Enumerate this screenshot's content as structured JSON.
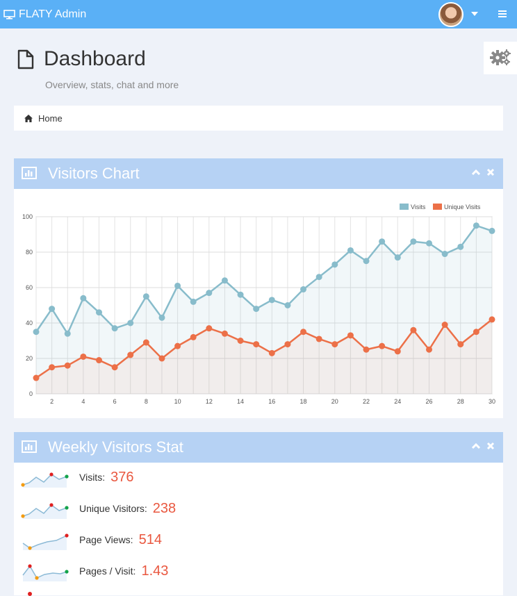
{
  "navbar": {
    "brand": "FLATY Admin"
  },
  "page": {
    "title": "Dashboard",
    "subtitle": "Overview, stats, chat and more"
  },
  "breadcrumb": {
    "home": "Home"
  },
  "visitors_chart": {
    "title": "Visitors Chart"
  },
  "weekly_stats": {
    "title": "Weekly Visitors Stat",
    "items": [
      {
        "label": "Visits:",
        "value": "376"
      },
      {
        "label": "Unique Visitors:",
        "value": "238"
      },
      {
        "label": "Page Views:",
        "value": "514"
      },
      {
        "label": "Pages / Visit:",
        "value": "1.43"
      }
    ]
  },
  "colors": {
    "navbar": "#5ab0f6",
    "box_header": "#b6d2f4",
    "visits": "#88bccb",
    "unique": "#ec7048",
    "stat_value": "#e9573f"
  },
  "chart_data": {
    "type": "line",
    "x": [
      1,
      2,
      3,
      4,
      5,
      6,
      7,
      8,
      9,
      10,
      11,
      12,
      13,
      14,
      15,
      16,
      17,
      18,
      19,
      20,
      21,
      22,
      23,
      24,
      25,
      26,
      27,
      28,
      29,
      30
    ],
    "series": [
      {
        "name": "Visits",
        "values": [
          35,
          48,
          34,
          54,
          46,
          37,
          40,
          55,
          43,
          61,
          52,
          57,
          64,
          56,
          48,
          53,
          50,
          59,
          66,
          73,
          81,
          75,
          86,
          77,
          86,
          85,
          79,
          83,
          95,
          92
        ]
      },
      {
        "name": "Unique Visits",
        "values": [
          9,
          15,
          16,
          21,
          19,
          15,
          22,
          29,
          20,
          27,
          32,
          37,
          34,
          30,
          28,
          23,
          28,
          35,
          31,
          28,
          33,
          25,
          27,
          24,
          36,
          25,
          39,
          28,
          35,
          42
        ]
      }
    ],
    "xlim": [
      1,
      30
    ],
    "ylim": [
      0,
      100
    ],
    "yticks": [
      0,
      20,
      40,
      60,
      80,
      100
    ],
    "xticks": [
      2,
      4,
      6,
      8,
      10,
      12,
      14,
      16,
      18,
      20,
      22,
      24,
      26,
      28,
      30
    ],
    "grid": true,
    "legend": "top-right"
  }
}
